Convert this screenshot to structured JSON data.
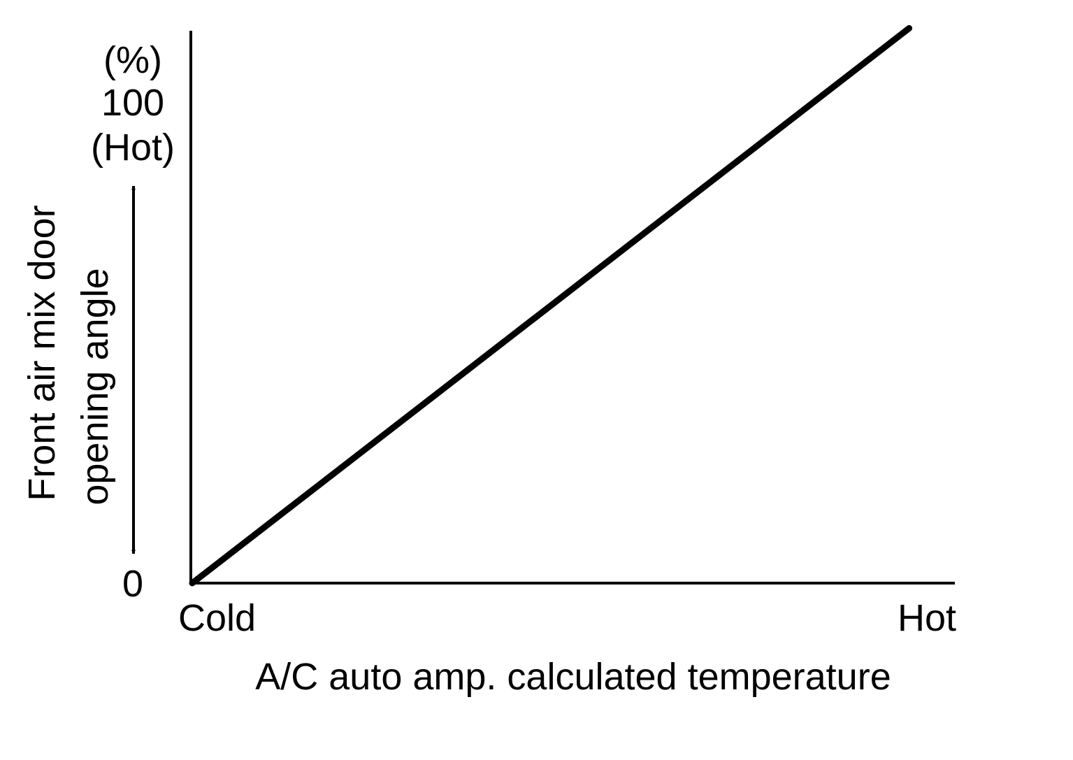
{
  "chart_data": {
    "type": "line",
    "title": "",
    "xlabel": "A/C auto amp. calculated temperature",
    "ylabel_lines": [
      "Front air mix door",
      "opening angle"
    ],
    "y_unit": "(%)",
    "x_tick_labels": {
      "min": "Cold",
      "max": "Hot"
    },
    "y_tick_labels": {
      "min": "0",
      "max": "100",
      "max_note": "(Hot)"
    },
    "ylim": [
      0,
      100
    ],
    "xlim": [
      0,
      100
    ],
    "grid": false,
    "series": [
      {
        "x": [
          0,
          94
        ],
        "y": [
          0,
          124
        ],
        "color": "#000000"
      }
    ]
  }
}
